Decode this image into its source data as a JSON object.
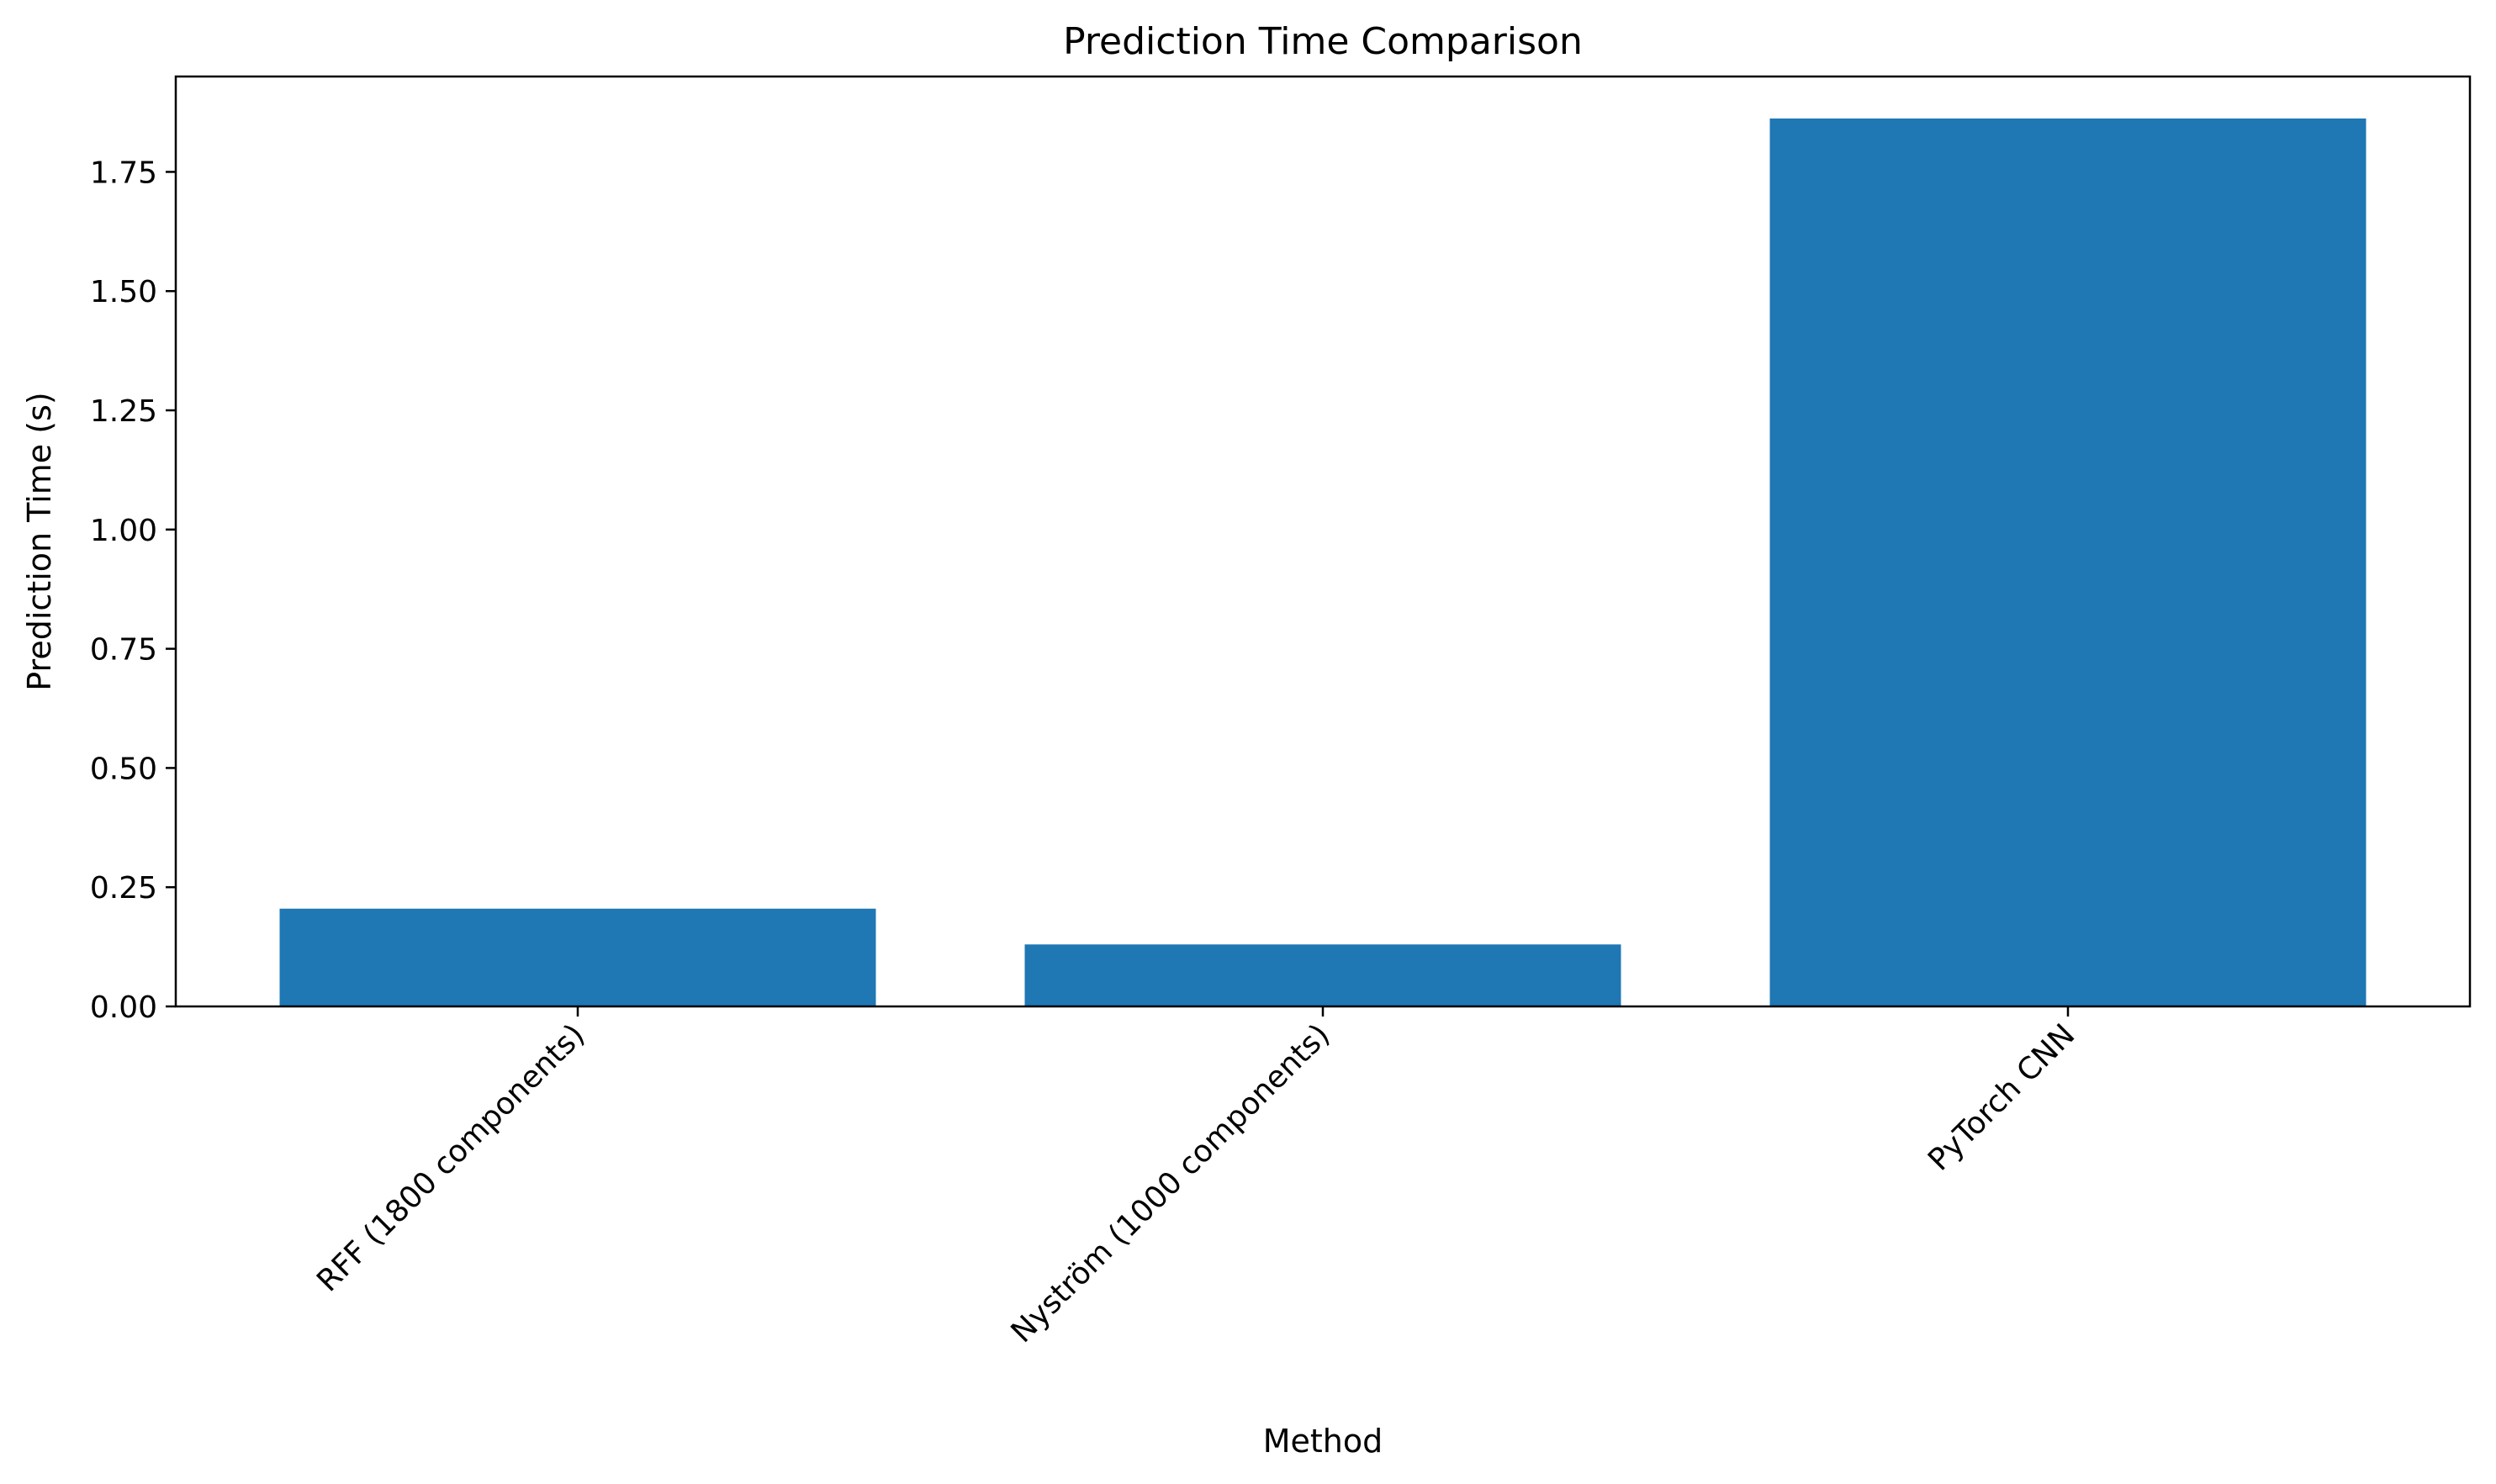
{
  "chart_data": {
    "type": "bar",
    "title": "Prediction Time Comparison",
    "xlabel": "Method",
    "ylabel": "Prediction Time (s)",
    "categories": [
      "RFF (1800 components)",
      "Nyström (1000 components)",
      "PyTorch CNN"
    ],
    "values": [
      0.205,
      0.13,
      1.862
    ],
    "ylim": [
      0,
      1.95
    ],
    "yticks": [
      0.0,
      0.25,
      0.5,
      0.75,
      1.0,
      1.25,
      1.5,
      1.75
    ],
    "ytick_labels": [
      "0.00",
      "0.25",
      "0.50",
      "0.75",
      "1.00",
      "1.25",
      "1.50",
      "1.75"
    ],
    "bar_color": "#1f77b4",
    "grid": false,
    "legend": "none"
  }
}
